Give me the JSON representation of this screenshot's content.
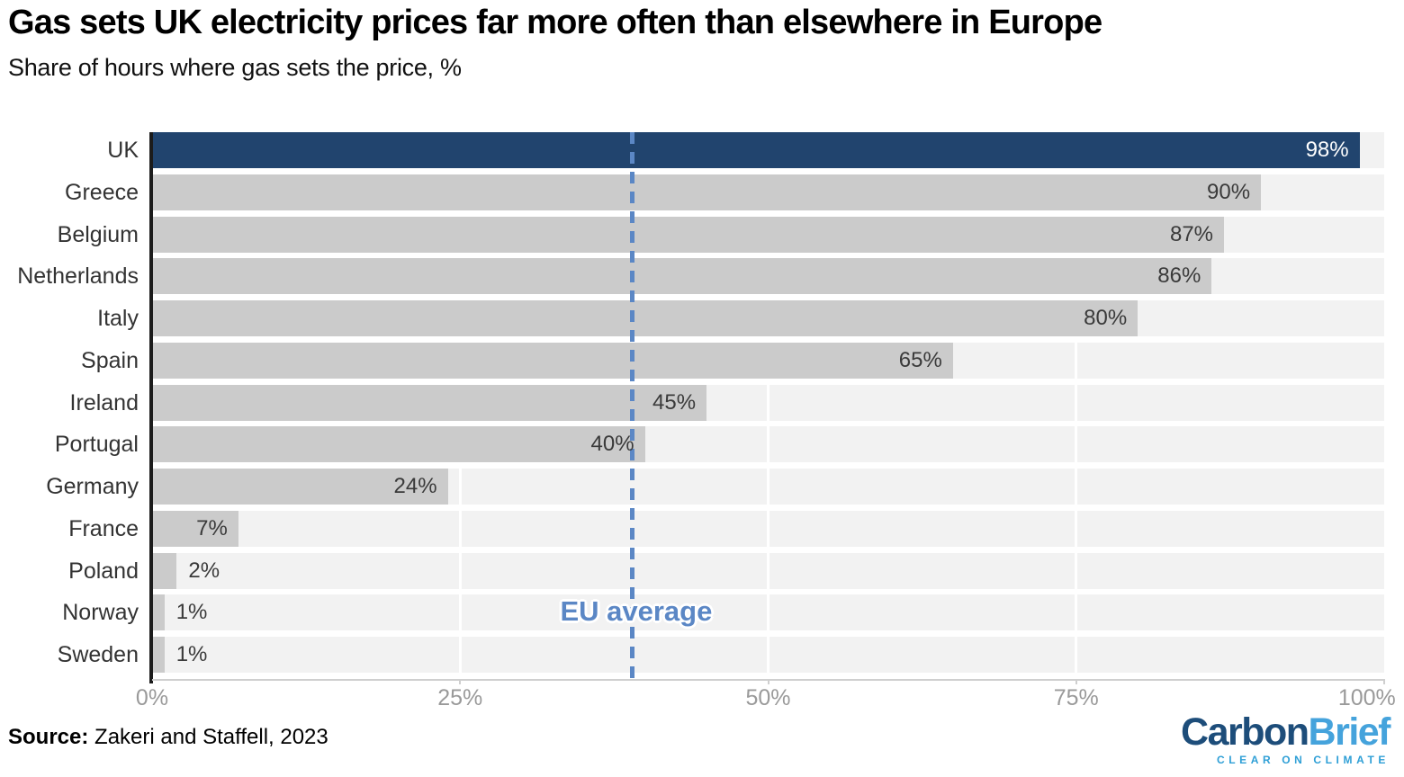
{
  "title": "Gas sets UK electricity prices far more often than elsewhere in Europe",
  "subtitle": "Share of hours where gas sets the price, %",
  "source": {
    "prefix": "Source:",
    "text": " Zakeri and Staffell, 2023"
  },
  "logo": {
    "carbon": "Carbon",
    "brief": "Brief",
    "tagline": "CLEAR ON CLIMATE"
  },
  "chart_data": {
    "type": "bar",
    "orientation": "horizontal",
    "title": "Gas sets UK electricity prices far more often than elsewhere in Europe",
    "subtitle": "Share of hours where gas sets the price, %",
    "categories": [
      "UK",
      "Greece",
      "Belgium",
      "Netherlands",
      "Italy",
      "Spain",
      "Ireland",
      "Portugal",
      "Germany",
      "France",
      "Poland",
      "Norway",
      "Sweden"
    ],
    "values": [
      98,
      90,
      87,
      86,
      80,
      65,
      45,
      40,
      24,
      7,
      2,
      1,
      1
    ],
    "value_labels": [
      "98%",
      "90%",
      "87%",
      "86%",
      "80%",
      "65%",
      "45%",
      "40%",
      "24%",
      "7%",
      "2%",
      "1%",
      "1%"
    ],
    "highlight_index": 0,
    "xlim": [
      0,
      100
    ],
    "x_ticks": [
      {
        "label": "0%",
        "value": 0
      },
      {
        "label": "25%",
        "value": 25
      },
      {
        "label": "50%",
        "value": 50
      },
      {
        "label": "75%",
        "value": 75
      },
      {
        "label": "100%",
        "value": 100
      }
    ],
    "gridlines": [
      25,
      50,
      75
    ],
    "annotation": {
      "label": "EU average",
      "x": 39
    },
    "legend": "none",
    "colors": {
      "highlight_bar": "#21446e",
      "bar": "#cbcbcb",
      "track": "#f2f2f2",
      "annotation_blue": "#5b87c5",
      "axis": "#1c1c1c",
      "tick_text": "#9a9a9a",
      "highlight_value_text": "#ffffff",
      "value_text": "#3a3a3a"
    }
  }
}
